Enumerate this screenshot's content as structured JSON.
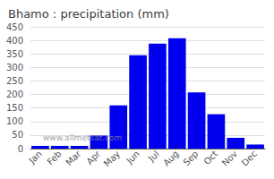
{
  "chart_data": {
    "type": "bar",
    "title": "Bhamo : precipitation (mm)",
    "categories": [
      "Jan",
      "Feb",
      "Mar",
      "Apr",
      "May",
      "Jun",
      "Jul",
      "Aug",
      "Sep",
      "Oct",
      "Nov",
      "Dec"
    ],
    "values": [
      10,
      10,
      10,
      48,
      160,
      345,
      388,
      408,
      208,
      127,
      40,
      15
    ],
    "color": "#0000EE",
    "ylim": [
      0,
      450
    ],
    "yticks": [
      0,
      50,
      100,
      150,
      200,
      250,
      300,
      350,
      400,
      450
    ],
    "grid": true,
    "annotations": [
      "www.allmetsat.com"
    ]
  }
}
